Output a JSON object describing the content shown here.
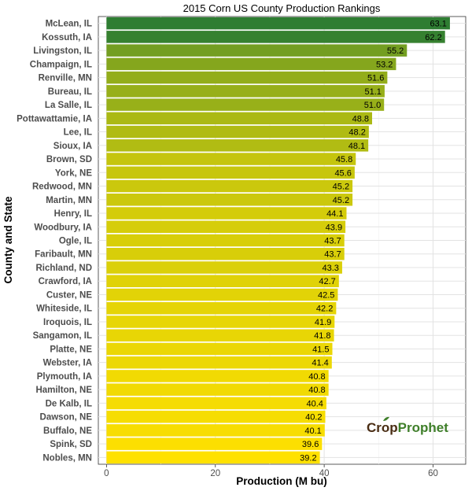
{
  "chart_data": {
    "type": "bar",
    "orientation": "horizontal",
    "title": "2015 Corn US County Production Rankings",
    "xlabel": "Production (M bu)",
    "ylabel": "County and State",
    "xlim": [
      -1.5,
      66
    ],
    "xticks": [
      0,
      20,
      40,
      60
    ],
    "grid": true,
    "categories": [
      "McLean, IL",
      "Kossuth, IA",
      "Livingston, IL",
      "Champaign, IL",
      "Renville, MN",
      "Bureau, IL",
      "La Salle, IL",
      "Pottawattamie, IA",
      "Lee, IL",
      "Sioux, IA",
      "Brown, SD",
      "York, NE",
      "Redwood, MN",
      "Martin, MN",
      "Henry, IL",
      "Woodbury, IA",
      "Ogle, IL",
      "Faribault, MN",
      "Richland, ND",
      "Crawford, IA",
      "Custer, NE",
      "Whiteside, IL",
      "Iroquois, IL",
      "Sangamon, IL",
      "Platte, NE",
      "Webster, IA",
      "Plymouth, IA",
      "Hamilton, NE",
      "De Kalb, IL",
      "Dawson, NE",
      "Buffalo, NE",
      "Spink, SD",
      "Nobles, MN"
    ],
    "values": [
      63.1,
      62.2,
      55.2,
      53.2,
      51.6,
      51.1,
      51.0,
      48.8,
      48.2,
      48.1,
      45.8,
      45.6,
      45.2,
      45.2,
      44.1,
      43.9,
      43.7,
      43.7,
      43.3,
      42.7,
      42.5,
      42.2,
      41.9,
      41.8,
      41.5,
      41.4,
      40.8,
      40.8,
      40.4,
      40.2,
      40.1,
      39.6,
      39.2
    ],
    "labels": [
      "63.1",
      "62.2",
      "55.2",
      "53.2",
      "51.6",
      "51.1",
      "51.0",
      "48.8",
      "48.2",
      "48.1",
      "45.8",
      "45.6",
      "45.2",
      "45.2",
      "44.1",
      "43.9",
      "43.7",
      "43.7",
      "43.3",
      "42.7",
      "42.5",
      "42.2",
      "41.9",
      "41.8",
      "41.5",
      "41.4",
      "40.8",
      "40.8",
      "40.4",
      "40.2",
      "40.1",
      "39.6",
      "39.2"
    ],
    "color_scale": [
      "#ffe100",
      "#2e7d32"
    ]
  },
  "logo": {
    "part1": "Crop",
    "part2": "Prophet"
  }
}
